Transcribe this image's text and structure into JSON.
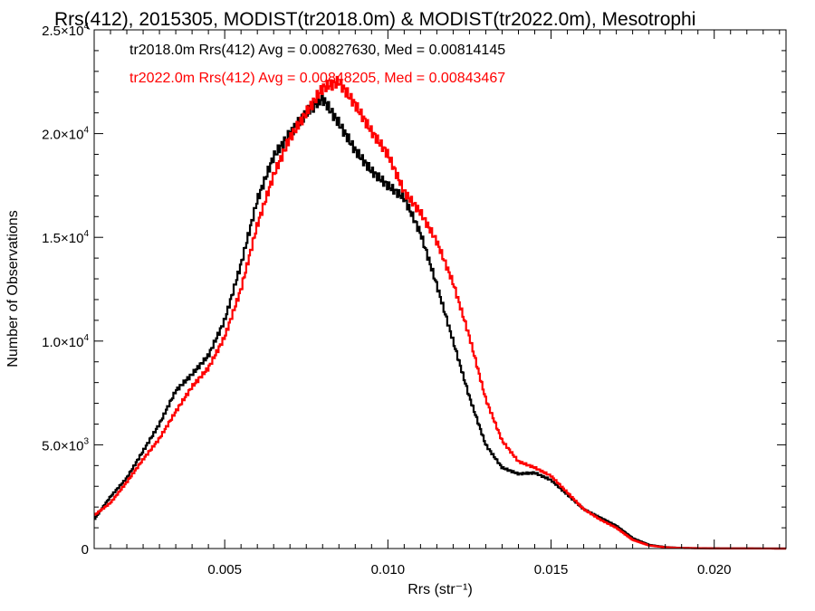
{
  "chart_data": {
    "type": "line",
    "title": "Rrs(412), 2015305, MODIST(tr2018.0m) & MODIST(tr2022.0m), Mesotrophi",
    "xlabel": "Rrs (str⁻¹)",
    "ylabel": "Number of Observations",
    "xlim": [
      0.001,
      0.0222
    ],
    "ylim": [
      0,
      25000
    ],
    "x_ticks": [
      {
        "value": 0.005,
        "label": "0.005"
      },
      {
        "value": 0.01,
        "label": "0.010"
      },
      {
        "value": 0.015,
        "label": "0.015"
      },
      {
        "value": 0.02,
        "label": "0.020"
      }
    ],
    "y_ticks": [
      {
        "value": 0,
        "mant": "0",
        "exp": ""
      },
      {
        "value": 5000,
        "mant": "5.0×10",
        "exp": "3"
      },
      {
        "value": 10000,
        "mant": "1.0×10",
        "exp": "4"
      },
      {
        "value": 15000,
        "mant": "1.5×10",
        "exp": "4"
      },
      {
        "value": 20000,
        "mant": "2.0×10",
        "exp": "4"
      },
      {
        "value": 25000,
        "mant": "2.5×10",
        "exp": "4"
      }
    ],
    "grid": false,
    "legend_position": "top-left",
    "series": [
      {
        "name": "tr2018.0m",
        "color": "#000000",
        "stats_label": "tr2018.0m Rrs(412) Avg = 0.00827630, Med = 0.00814145",
        "points": [
          [
            0.001,
            1400
          ],
          [
            0.0015,
            2500
          ],
          [
            0.002,
            3400
          ],
          [
            0.0025,
            4700
          ],
          [
            0.003,
            6000
          ],
          [
            0.0035,
            7600
          ],
          [
            0.004,
            8400
          ],
          [
            0.0045,
            9300
          ],
          [
            0.005,
            11000
          ],
          [
            0.0055,
            13700
          ],
          [
            0.006,
            16800
          ],
          [
            0.0065,
            18900
          ],
          [
            0.007,
            20000
          ],
          [
            0.0075,
            21000
          ],
          [
            0.008,
            21700
          ],
          [
            0.0085,
            20500
          ],
          [
            0.009,
            19200
          ],
          [
            0.0095,
            18200
          ],
          [
            0.01,
            17500
          ],
          [
            0.0105,
            16900
          ],
          [
            0.011,
            15200
          ],
          [
            0.0115,
            12700
          ],
          [
            0.012,
            10000
          ],
          [
            0.0125,
            7300
          ],
          [
            0.013,
            5000
          ],
          [
            0.0135,
            3900
          ],
          [
            0.014,
            3600
          ],
          [
            0.0145,
            3650
          ],
          [
            0.015,
            3300
          ],
          [
            0.0155,
            2600
          ],
          [
            0.016,
            1900
          ],
          [
            0.0165,
            1500
          ],
          [
            0.017,
            1100
          ],
          [
            0.0175,
            500
          ],
          [
            0.018,
            180
          ],
          [
            0.0185,
            70
          ],
          [
            0.019,
            30
          ],
          [
            0.02,
            10
          ],
          [
            0.0222,
            0
          ]
        ]
      },
      {
        "name": "tr2022.0m",
        "color": "#ff0000",
        "stats_label": "tr2022.0m Rrs(412) Avg = 0.00848205, Med = 0.00843467",
        "points": [
          [
            0.001,
            1600
          ],
          [
            0.0015,
            2200
          ],
          [
            0.002,
            3200
          ],
          [
            0.0025,
            4300
          ],
          [
            0.003,
            5300
          ],
          [
            0.0035,
            6600
          ],
          [
            0.004,
            7800
          ],
          [
            0.0045,
            8700
          ],
          [
            0.005,
            10200
          ],
          [
            0.0055,
            12500
          ],
          [
            0.006,
            15600
          ],
          [
            0.0065,
            18000
          ],
          [
            0.007,
            19800
          ],
          [
            0.0075,
            21000
          ],
          [
            0.008,
            22200
          ],
          [
            0.0085,
            22500
          ],
          [
            0.009,
            21400
          ],
          [
            0.0095,
            20100
          ],
          [
            0.01,
            19000
          ],
          [
            0.0105,
            17200
          ],
          [
            0.011,
            16200
          ],
          [
            0.0115,
            14800
          ],
          [
            0.012,
            12800
          ],
          [
            0.0125,
            10200
          ],
          [
            0.013,
            7200
          ],
          [
            0.0135,
            5200
          ],
          [
            0.014,
            4200
          ],
          [
            0.0145,
            3900
          ],
          [
            0.015,
            3500
          ],
          [
            0.0155,
            2700
          ],
          [
            0.016,
            1900
          ],
          [
            0.0165,
            1400
          ],
          [
            0.017,
            1000
          ],
          [
            0.0175,
            420
          ],
          [
            0.018,
            150
          ],
          [
            0.0185,
            60
          ],
          [
            0.019,
            25
          ],
          [
            0.02,
            8
          ],
          [
            0.0222,
            0
          ]
        ]
      }
    ]
  }
}
